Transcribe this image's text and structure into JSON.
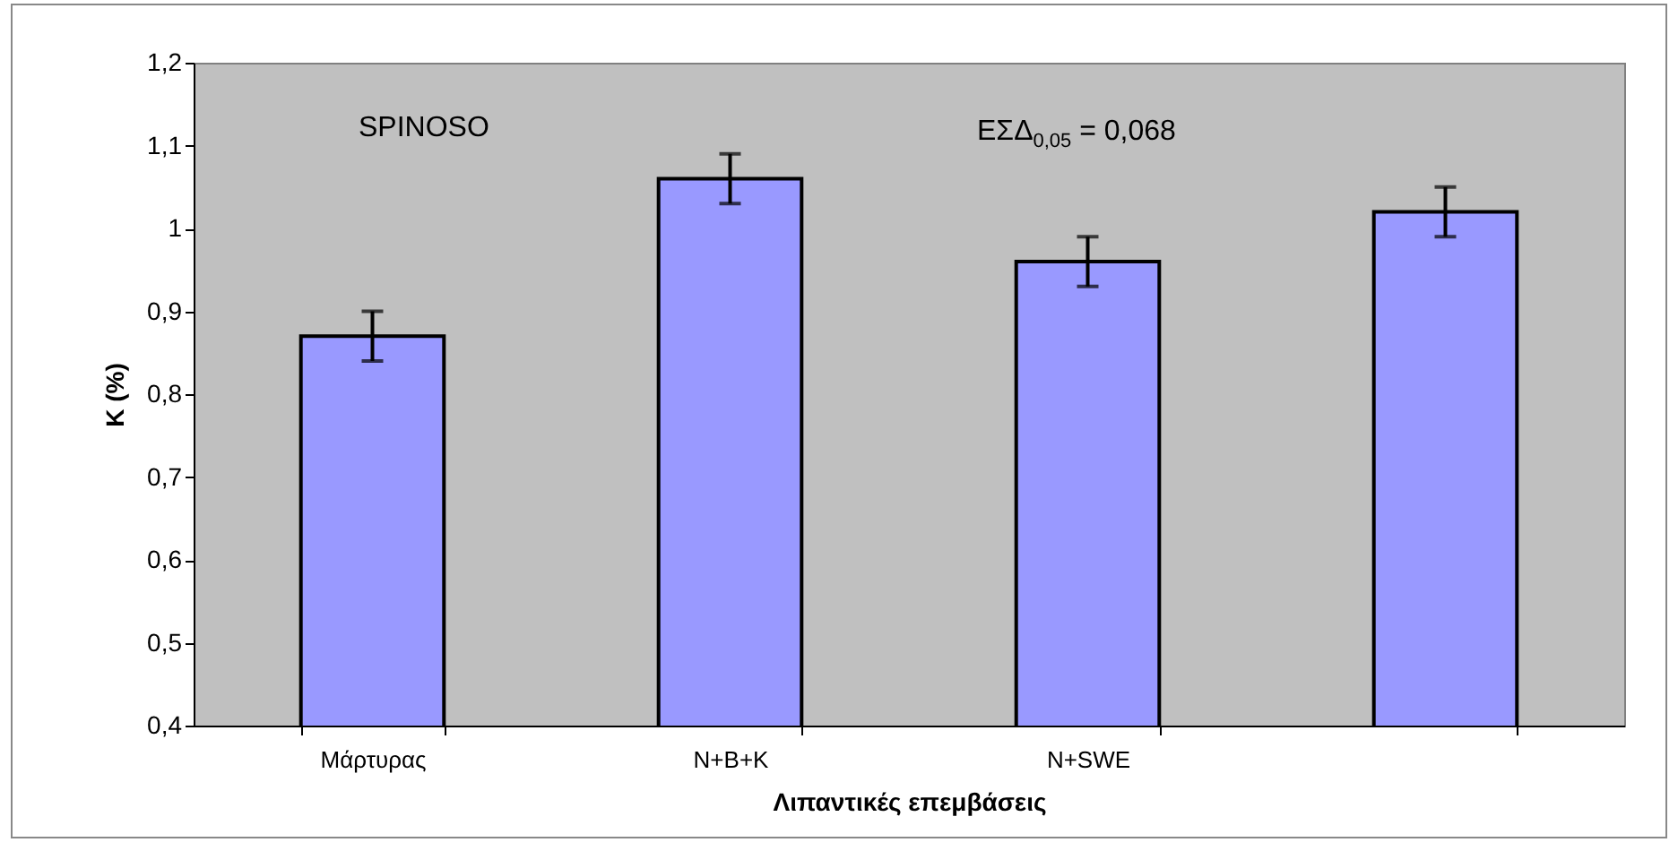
{
  "chart_data": {
    "type": "bar",
    "xlabel": "Λιπαντικές επεμβάσεις",
    "ylabel": "K (%)",
    "categories": [
      "Μάρτυρας",
      "N+B+K",
      "N+SWE",
      null
    ],
    "values": [
      0.87,
      1.06,
      0.96,
      1.02
    ],
    "errors": [
      0.03,
      0.03,
      0.03,
      0.03
    ],
    "color": "#9999ff",
    "ylim": [
      0.4,
      1.2
    ],
    "yticks": [
      {
        "value": 0.4,
        "label": "0,4"
      },
      {
        "value": 0.5,
        "label": "0,5"
      },
      {
        "value": 0.6,
        "label": "0,6"
      },
      {
        "value": 0.7,
        "label": "0,7"
      },
      {
        "value": 0.8,
        "label": "0,8"
      },
      {
        "value": 0.9,
        "label": "0,9"
      },
      {
        "value": 1,
        "label": "1"
      },
      {
        "value": 1.1,
        "label": "1,1"
      },
      {
        "value": 1.2,
        "label": "1,2"
      }
    ],
    "annotations": [
      "SPINOSO",
      "ΕΣΔ$_{0,05}$ = 0,068"
    ]
  }
}
